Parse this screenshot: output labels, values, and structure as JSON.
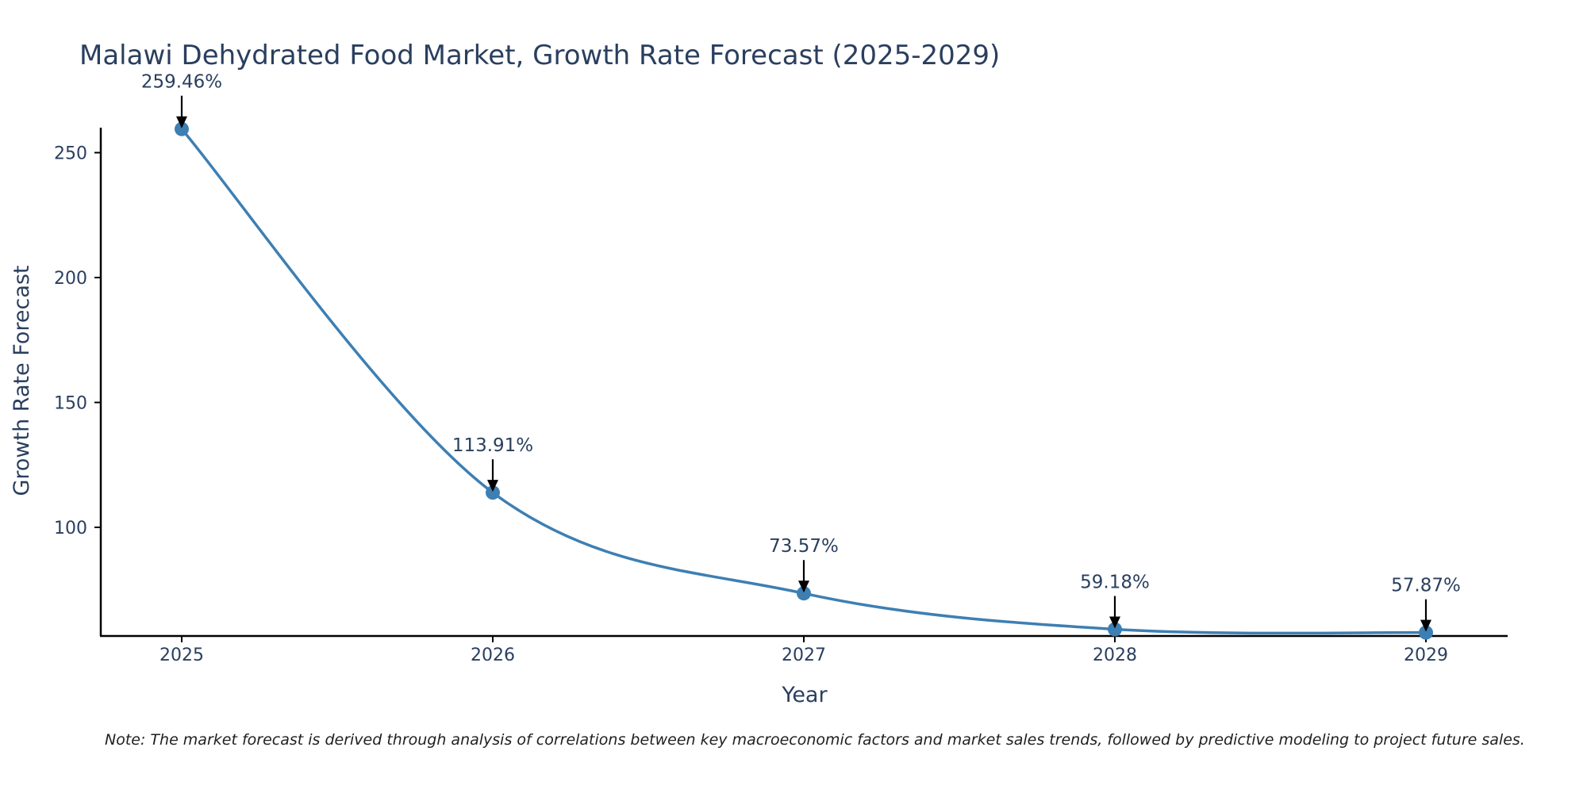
{
  "chart_data": {
    "type": "line",
    "title": "Malawi Dehydrated Food Market, Growth Rate Forecast (2025-2029)",
    "xlabel": "Year",
    "ylabel": "Growth Rate Forecast",
    "categories": [
      "2025",
      "2026",
      "2027",
      "2028",
      "2029"
    ],
    "values": [
      259.46,
      113.91,
      73.57,
      59.18,
      57.87
    ],
    "data_labels": [
      "259.46%",
      "113.91%",
      "73.57%",
      "59.18%",
      "57.87%"
    ],
    "y_ticks": [
      100,
      150,
      200,
      250
    ],
    "ylim": [
      56.5,
      260
    ],
    "grid": false,
    "line_color": "#3d7fb3",
    "marker_color": "#3d7fb3",
    "annotation_arrow_color": "#000000",
    "note": "Note: The market forecast is derived through analysis of correlations between key macroeconomic factors and market sales trends, followed by predictive modeling to project future sales."
  }
}
